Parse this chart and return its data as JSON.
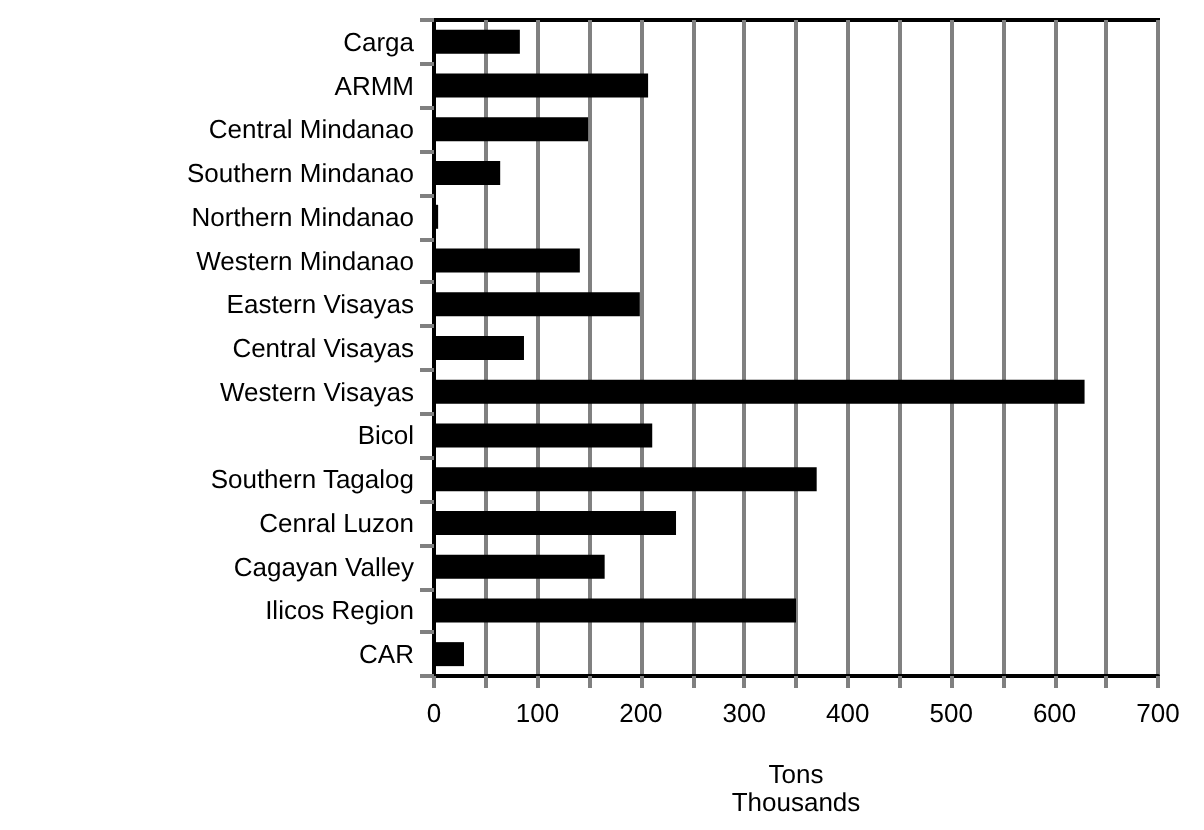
{
  "chart_data": {
    "type": "bar",
    "orientation": "horizontal",
    "categories": [
      "Carga",
      "ARMM",
      "Central Mindanao",
      "Southern Mindanao",
      "Northern Mindanao",
      "Western Mindanao",
      "Eastern Visayas",
      "Central Visayas",
      "Western Visayas",
      "Bicol",
      "Southern Tagalog",
      "Cenral Luzon",
      "Cagayan Valley",
      "Ilicos Region",
      "CAR"
    ],
    "values": [
      83,
      207,
      149,
      64,
      4,
      141,
      199,
      87,
      629,
      211,
      370,
      234,
      165,
      350,
      29
    ],
    "color": "#000000",
    "xlabel": "Tons\nThousands",
    "xlim": [
      0,
      700
    ],
    "xticks": [
      0,
      {
        "value": 50,
        "label": null
      },
      100,
      {
        "value": 150,
        "label": null
      },
      200,
      {
        "value": 250,
        "label": null
      },
      300,
      {
        "value": 350,
        "label": null
      },
      400,
      {
        "value": 450,
        "label": null
      },
      500,
      {
        "value": 550,
        "label": null
      },
      600,
      {
        "value": 650,
        "label": null
      },
      700
    ],
    "grid": "x"
  }
}
